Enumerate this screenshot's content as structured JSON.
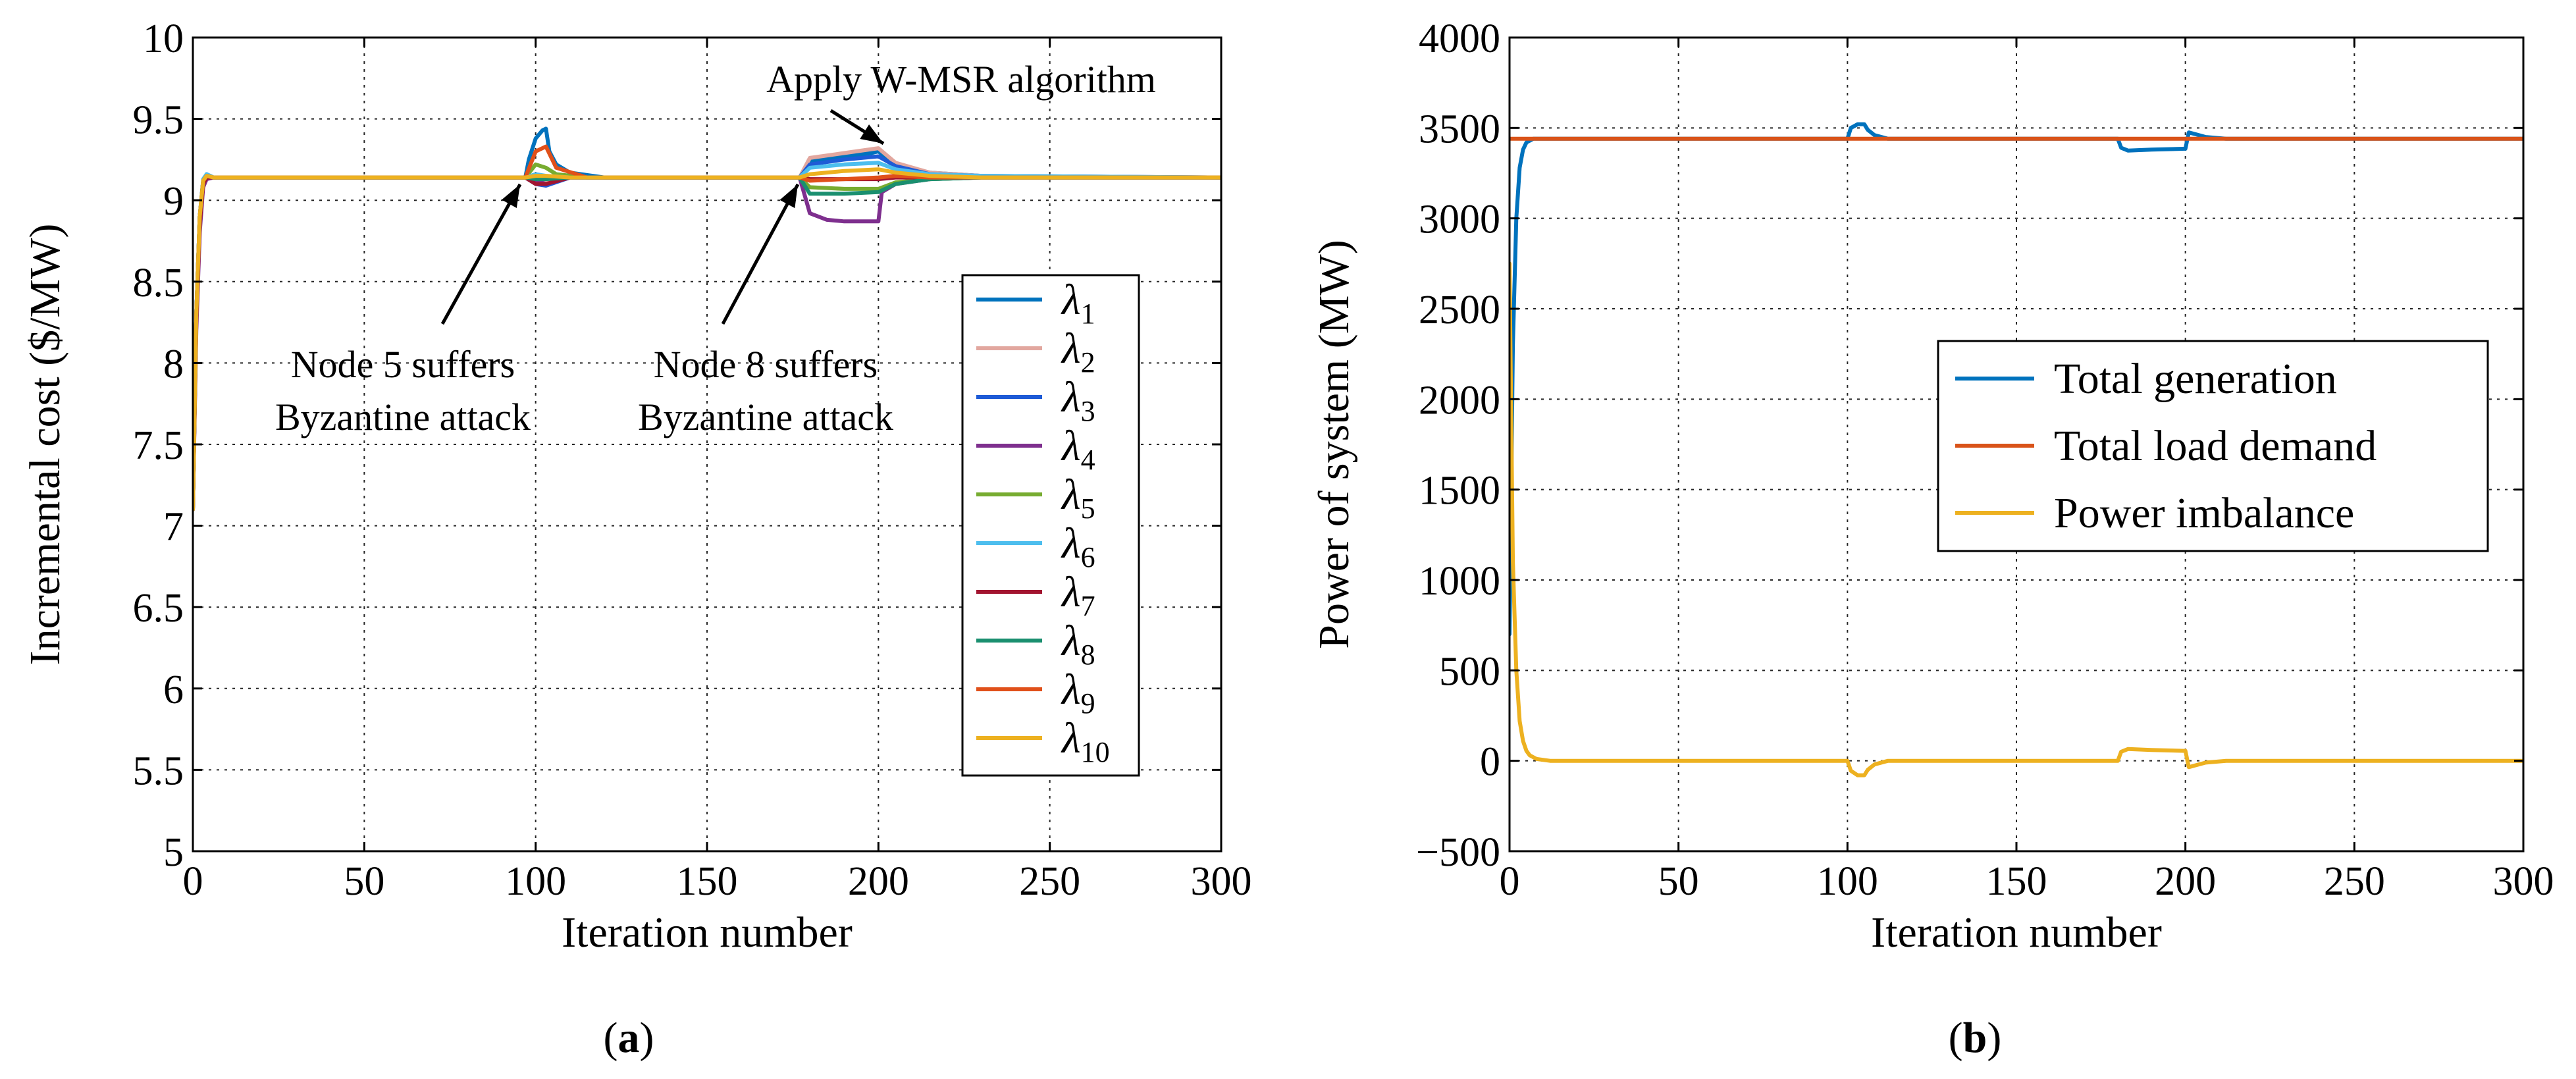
{
  "chart_data": [
    {
      "type": "line",
      "panel_label": "(a)",
      "panel_letter": "a",
      "xlabel": "Iteration number",
      "ylabel": "Incremental cost ($/MW)",
      "xlim": [
        0,
        300
      ],
      "ylim": [
        5,
        10
      ],
      "xticks": [
        0,
        50,
        100,
        150,
        200,
        250,
        300
      ],
      "yticks": [
        5,
        5.5,
        6,
        6.5,
        7,
        7.5,
        8,
        8.5,
        9,
        9.5,
        10
      ],
      "grid": true,
      "legend_position": "right",
      "annotations": [
        {
          "lines": [
            "Apply W-MSR algorithm"
          ],
          "x": 198,
          "y": 9.32
        },
        {
          "lines": [
            "Node 5 suffers",
            "Byzantine attack"
          ],
          "x": 97,
          "y": 9.1
        },
        {
          "lines": [
            "Node 8 suffers",
            "Byzantine attack"
          ],
          "x": 177,
          "y": 9.1
        }
      ],
      "series": [
        {
          "name": "λ",
          "subscript": "1",
          "color": "#0072BD",
          "x": [
            0,
            1,
            2,
            3,
            4,
            6,
            10,
            25,
            97,
            98,
            100,
            102,
            103,
            104,
            106,
            110,
            120,
            177,
            180,
            190,
            198,
            200,
            205,
            215,
            230,
            250,
            300
          ],
          "y": [
            7.1,
            8.3,
            8.9,
            9.12,
            9.16,
            9.14,
            9.14,
            9.14,
            9.14,
            9.25,
            9.38,
            9.43,
            9.44,
            9.3,
            9.22,
            9.17,
            9.14,
            9.14,
            9.24,
            9.27,
            9.29,
            9.3,
            9.22,
            9.17,
            9.15,
            9.14,
            9.14
          ]
        },
        {
          "name": "λ",
          "subscript": "2",
          "color": "#D95319",
          "x": [
            0,
            1,
            2,
            3,
            4,
            6,
            10,
            25,
            97,
            100,
            103,
            110,
            177,
            180,
            190,
            200,
            205,
            215,
            230,
            300
          ],
          "y": [
            7.1,
            8.25,
            8.85,
            9.1,
            9.14,
            9.14,
            9.14,
            9.14,
            9.14,
            9.12,
            9.11,
            9.14,
            9.14,
            9.26,
            9.29,
            9.32,
            9.23,
            9.17,
            9.15,
            9.14
          ],
          "draw_color": "#E2A79F"
        },
        {
          "name": "λ",
          "subscript": "3",
          "color": "#0000CC",
          "x": [
            0,
            1,
            2,
            3,
            4,
            6,
            10,
            25,
            97,
            100,
            103,
            110,
            177,
            180,
            190,
            200,
            205,
            215,
            230,
            300
          ],
          "y": [
            7.1,
            8.3,
            8.9,
            9.12,
            9.15,
            9.14,
            9.14,
            9.14,
            9.14,
            9.1,
            9.09,
            9.14,
            9.14,
            9.22,
            9.25,
            9.27,
            9.21,
            9.16,
            9.15,
            9.14
          ],
          "draw_color": "#1E5BD6"
        },
        {
          "name": "λ",
          "subscript": "4",
          "color": "#7E2F8E",
          "x": [
            0,
            1,
            2,
            3,
            4,
            6,
            10,
            25,
            97,
            100,
            103,
            110,
            177,
            180,
            185,
            190,
            200,
            201,
            205,
            215,
            230,
            300
          ],
          "y": [
            7.1,
            8.2,
            8.8,
            9.08,
            9.13,
            9.14,
            9.14,
            9.14,
            9.14,
            9.12,
            9.1,
            9.14,
            9.14,
            8.92,
            8.88,
            8.87,
            8.87,
            9.05,
            9.1,
            9.13,
            9.14,
            9.14
          ]
        },
        {
          "name": "λ",
          "subscript": "5",
          "color": "#77AC30",
          "x": [
            0,
            1,
            2,
            3,
            4,
            6,
            10,
            25,
            97,
            100,
            103,
            106,
            115,
            177,
            180,
            190,
            200,
            205,
            215,
            230,
            300
          ],
          "y": [
            7.1,
            8.3,
            8.9,
            9.12,
            9.15,
            9.14,
            9.14,
            9.14,
            9.14,
            9.22,
            9.2,
            9.16,
            9.14,
            9.14,
            9.08,
            9.07,
            9.07,
            9.11,
            9.13,
            9.14,
            9.14
          ]
        },
        {
          "name": "λ",
          "subscript": "6",
          "color": "#4DBEEE",
          "x": [
            0,
            1,
            2,
            3,
            4,
            6,
            10,
            25,
            97,
            100,
            103,
            110,
            177,
            180,
            190,
            200,
            205,
            215,
            230,
            300
          ],
          "y": [
            7.1,
            8.3,
            8.9,
            9.13,
            9.16,
            9.14,
            9.14,
            9.14,
            9.14,
            9.16,
            9.15,
            9.14,
            9.14,
            9.2,
            9.22,
            9.23,
            9.19,
            9.16,
            9.15,
            9.14
          ]
        },
        {
          "name": "λ",
          "subscript": "7",
          "color": "#A2142F",
          "x": [
            0,
            1,
            2,
            3,
            4,
            6,
            10,
            25,
            97,
            100,
            103,
            110,
            177,
            180,
            190,
            200,
            205,
            215,
            230,
            300
          ],
          "y": [
            7.1,
            8.25,
            8.85,
            9.1,
            9.14,
            9.14,
            9.14,
            9.14,
            9.14,
            9.1,
            9.1,
            9.14,
            9.14,
            9.13,
            9.13,
            9.13,
            9.14,
            9.14,
            9.14,
            9.14
          ]
        },
        {
          "name": "λ",
          "subscript": "8",
          "color": "#1A8F6F",
          "x": [
            0,
            1,
            2,
            3,
            4,
            6,
            10,
            25,
            97,
            100,
            103,
            110,
            177,
            180,
            190,
            200,
            205,
            215,
            230,
            300
          ],
          "y": [
            7.1,
            8.3,
            8.9,
            9.12,
            9.15,
            9.14,
            9.14,
            9.14,
            9.14,
            9.13,
            9.13,
            9.14,
            9.14,
            9.04,
            9.04,
            9.05,
            9.1,
            9.13,
            9.14,
            9.14
          ]
        },
        {
          "name": "λ",
          "subscript": "9",
          "color": "#E0501A",
          "x": [
            0,
            1,
            2,
            3,
            4,
            6,
            10,
            25,
            97,
            100,
            103,
            106,
            115,
            177,
            180,
            190,
            200,
            205,
            215,
            230,
            300
          ],
          "y": [
            7.1,
            8.3,
            8.9,
            9.12,
            9.15,
            9.14,
            9.14,
            9.14,
            9.14,
            9.3,
            9.33,
            9.2,
            9.14,
            9.14,
            9.12,
            9.13,
            9.14,
            9.15,
            9.14,
            9.14,
            9.14
          ]
        },
        {
          "name": "λ",
          "subscript": "10",
          "color": "#EDB120",
          "x": [
            0,
            1,
            2,
            3,
            4,
            6,
            10,
            25,
            97,
            100,
            103,
            110,
            177,
            180,
            190,
            200,
            205,
            215,
            230,
            300
          ],
          "y": [
            7.1,
            8.3,
            8.9,
            9.12,
            9.15,
            9.14,
            9.14,
            9.14,
            9.14,
            9.15,
            9.15,
            9.14,
            9.14,
            9.16,
            9.18,
            9.19,
            9.17,
            9.15,
            9.14,
            9.14
          ]
        }
      ]
    },
    {
      "type": "line",
      "panel_label": "(b)",
      "panel_letter": "b",
      "xlabel": "Iteration number",
      "ylabel": "Power of system (MW)",
      "xlim": [
        0,
        300
      ],
      "ylim": [
        -500,
        4000
      ],
      "xticks": [
        0,
        50,
        100,
        150,
        200,
        250,
        300
      ],
      "yticks": [
        -500,
        0,
        500,
        1000,
        1500,
        2000,
        2500,
        3000,
        3500,
        4000
      ],
      "ytick_labels": [
        "−500",
        "0",
        "500",
        "1000",
        "1500",
        "2000",
        "2500",
        "3000",
        "3500",
        "4000"
      ],
      "grid": true,
      "legend_position": "center-right",
      "series": [
        {
          "name": "Total generation",
          "color": "#0072BD",
          "x": [
            0,
            0.5,
            1,
            2,
            3,
            4,
            5,
            7,
            10,
            100,
            101,
            103,
            105,
            106,
            108,
            112,
            180,
            181,
            183,
            190,
            200,
            201,
            203,
            206,
            212,
            300
          ],
          "y": [
            700,
            1500,
            2300,
            3000,
            3280,
            3380,
            3420,
            3440,
            3440,
            3440,
            3500,
            3520,
            3520,
            3490,
            3460,
            3440,
            3440,
            3390,
            3375,
            3380,
            3385,
            3475,
            3465,
            3450,
            3440,
            3440
          ]
        },
        {
          "name": "Total load demand",
          "color": "#D95319",
          "x": [
            0,
            300
          ],
          "y": [
            3440,
            3440
          ]
        },
        {
          "name": "Power imbalance",
          "color": "#EDB120",
          "x": [
            0,
            0.5,
            1,
            2,
            3,
            4,
            5,
            6,
            8,
            12,
            100,
            101,
            103,
            105,
            106,
            108,
            112,
            180,
            181,
            183,
            190,
            200,
            201,
            203,
            206,
            212,
            300
          ],
          "y": [
            2750,
            1900,
            1100,
            500,
            220,
            110,
            55,
            30,
            10,
            0,
            0,
            -55,
            -80,
            -80,
            -50,
            -20,
            0,
            0,
            50,
            65,
            60,
            55,
            -35,
            -25,
            -10,
            0,
            0
          ]
        }
      ]
    }
  ]
}
